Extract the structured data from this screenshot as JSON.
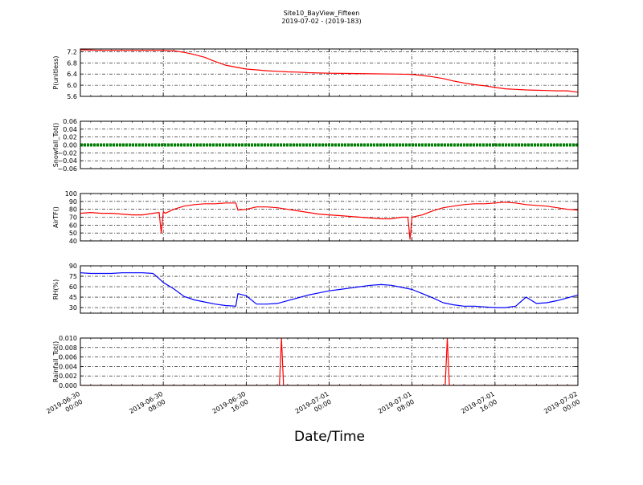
{
  "title": "Site10_BayView_Fifteen",
  "subtitle": "2019-07-02 - (2019-183)",
  "xlabel": "Date/Time",
  "x_ticks": [
    "2019-06-30\n00:00",
    "2019-06-30\n08:00",
    "2019-06-30\n16:00",
    "2019-07-01\n00:00",
    "2019-07-01\n08:00",
    "2019-07-01\n16:00",
    "2019-07-02\n00:00"
  ],
  "chart_data": [
    {
      "type": "line",
      "ylabel": "P(unitless)",
      "xlim": [
        0,
        48
      ],
      "ylim": [
        5.6,
        7.3
      ],
      "yticks": [
        "5.6",
        "6.0",
        "6.4",
        "6.8",
        "7.2"
      ],
      "grid": true,
      "series": [
        {
          "color": "#ff0000",
          "x": [
            0,
            2,
            4,
            6,
            8,
            9,
            10,
            11,
            12,
            13,
            14,
            15,
            16,
            17,
            18,
            19,
            20,
            21,
            22,
            24,
            26,
            28,
            30,
            32,
            33,
            34,
            35,
            36,
            37,
            38,
            39,
            40,
            41,
            42,
            43,
            44,
            45,
            46,
            47,
            48
          ],
          "values": [
            7.27,
            7.25,
            7.25,
            7.25,
            7.25,
            7.23,
            7.18,
            7.1,
            7.0,
            6.85,
            6.72,
            6.65,
            6.58,
            6.55,
            6.52,
            6.5,
            6.48,
            6.47,
            6.45,
            6.43,
            6.42,
            6.41,
            6.4,
            6.39,
            6.35,
            6.3,
            6.24,
            6.15,
            6.08,
            6.02,
            5.98,
            5.92,
            5.87,
            5.85,
            5.83,
            5.82,
            5.81,
            5.8,
            5.8,
            5.75
          ]
        }
      ]
    },
    {
      "type": "line",
      "ylabel": "Snowfall_Tot()",
      "xlim": [
        0,
        48
      ],
      "ylim": [
        -0.06,
        0.06
      ],
      "yticks": [
        "−0.06",
        "−0.04",
        "−0.02",
        "0.00",
        "0.02",
        "0.04",
        "0.06"
      ],
      "grid": true,
      "series": [
        {
          "color": "#008000",
          "x": [
            0,
            48
          ],
          "values": [
            0,
            0
          ]
        }
      ]
    },
    {
      "type": "line",
      "ylabel": "AirTF()",
      "xlim": [
        0,
        48
      ],
      "ylim": [
        40,
        100
      ],
      "yticks": [
        "40",
        "50",
        "60",
        "70",
        "80",
        "90",
        "100"
      ],
      "grid": true,
      "series": [
        {
          "color": "#ff0000",
          "x": [
            0,
            1,
            2,
            3,
            4,
            5,
            6,
            7,
            7.6,
            7.8,
            8,
            8.2,
            9,
            10,
            11,
            12,
            13,
            14,
            15,
            15.2,
            16,
            17,
            18,
            19,
            20,
            21,
            22,
            23,
            24,
            25,
            26,
            27,
            28,
            29,
            30,
            31,
            31.6,
            31.8,
            32,
            33,
            34,
            35,
            36,
            37,
            38,
            39,
            40,
            41,
            42,
            43,
            44,
            45,
            46,
            47,
            48
          ],
          "values": [
            75,
            76,
            75,
            75,
            74,
            73,
            73,
            75,
            76,
            50,
            77,
            75,
            80,
            84,
            86,
            87,
            87,
            88,
            88,
            79,
            80,
            83,
            83,
            82,
            80,
            78,
            76,
            74,
            73,
            72,
            71,
            70,
            69,
            68,
            68,
            70,
            70,
            42,
            70,
            73,
            78,
            82,
            84,
            86,
            87,
            87,
            88,
            89,
            88,
            86,
            85,
            84,
            82,
            80,
            79
          ]
        }
      ]
    },
    {
      "type": "line",
      "ylabel": "RH(%)",
      "xlim": [
        0,
        48
      ],
      "ylim": [
        22,
        90
      ],
      "yticks": [
        "30",
        "45",
        "60",
        "75",
        "90"
      ],
      "grid": true,
      "series": [
        {
          "color": "#0000ff",
          "x": [
            0,
            1,
            2,
            3,
            4,
            5,
            6,
            7,
            7.5,
            8,
            9,
            10,
            11,
            12,
            13,
            14,
            15,
            15.2,
            16,
            17,
            18,
            19,
            20,
            21,
            22,
            23,
            24,
            25,
            26,
            27,
            28,
            29,
            30,
            31,
            32,
            33,
            34,
            35,
            36,
            37,
            38,
            39,
            40,
            41,
            42,
            43,
            44,
            45,
            46,
            47,
            48
          ],
          "values": [
            80,
            79,
            79,
            79,
            80,
            80,
            80,
            79,
            73,
            66,
            57,
            46,
            41,
            38,
            35,
            33,
            32,
            50,
            47,
            35,
            35,
            36,
            40,
            44,
            48,
            51,
            54,
            56,
            58,
            60,
            62,
            63,
            62,
            59,
            56,
            50,
            44,
            37,
            34,
            32,
            32,
            31,
            30,
            30,
            32,
            45,
            36,
            37,
            40,
            44,
            48
          ]
        }
      ]
    },
    {
      "type": "line",
      "ylabel": "Rainfall_Tot()",
      "xlim": [
        0,
        48
      ],
      "ylim": [
        0,
        0.01
      ],
      "yticks": [
        "0.000",
        "0.002",
        "0.004",
        "0.006",
        "0.008",
        "0.010"
      ],
      "grid": true,
      "series": [
        {
          "color": "#ff0000",
          "x": [
            0,
            19.2,
            19.4,
            19.6,
            35.2,
            35.4,
            35.6,
            48
          ],
          "values": [
            0,
            0,
            0.01,
            0,
            0,
            0.01,
            0,
            0
          ]
        }
      ]
    }
  ]
}
